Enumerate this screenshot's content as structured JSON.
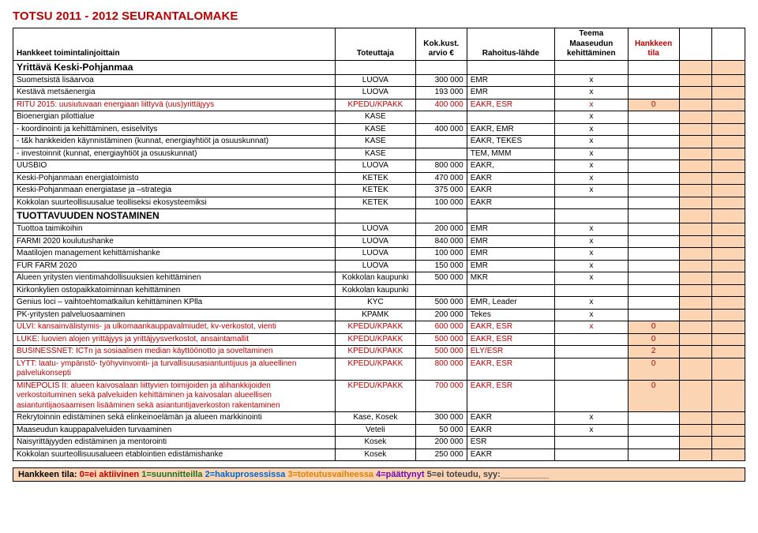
{
  "title": "TOTSU 2011 - 2012 SEURANTALOMAKE",
  "headers": {
    "name": "Hankkeet toimintalinjoittain",
    "tot": "Toteuttaja",
    "kok": "Kok.kust. arvio €",
    "rah": "Rahoitus-lähde",
    "teema": "Teema Maaseudun kehittäminen",
    "tila": "Hankkeen tila"
  },
  "section1": "Yrittävä Keski-Pohjanmaa",
  "rows1": [
    {
      "name": "Suometsistä lisäarvoa",
      "tot": "LUOVA",
      "kok": "300 000",
      "rah": "EMR",
      "teema": "x",
      "tila": "",
      "red": false,
      "salmon": false
    },
    {
      "name": "Kestävä metsäenergia",
      "tot": "LUOVA",
      "kok": "193 000",
      "rah": "EMR",
      "teema": "x",
      "tila": "",
      "red": false,
      "salmon": false
    },
    {
      "name": "RITU 2015: uusiutuvaan energiaan liittyvä (uus)yrittäjyys",
      "tot": "KPEDU/KPAKK",
      "kok": "400 000",
      "rah": "EAKR, ESR",
      "teema": "x",
      "tila": "0",
      "red": true,
      "salmon": true
    },
    {
      "name": "Bioenergian pilottialue",
      "tot": "KASE",
      "kok": "",
      "rah": "",
      "teema": "x",
      "tila": "",
      "red": false,
      "salmon": false
    },
    {
      "name": "-    koordinointi ja kehittäminen, esiselvitys",
      "tot": "KASE",
      "kok": "400 000",
      "rah": "EAKR, EMR",
      "teema": "x",
      "tila": "",
      "red": false,
      "salmon": false
    },
    {
      "name": "-    t&k hankkeiden käynnistäminen (kunnat, energiayhtiöt ja osuuskunnat)",
      "tot": "KASE",
      "kok": "",
      "rah": "EAKR, TEKES",
      "teema": "x",
      "tila": "",
      "red": false,
      "salmon": false
    },
    {
      "name": "-    investoinnit (kunnat, energiayhtiöt ja osuuskunnat)",
      "tot": "KASE",
      "kok": "",
      "rah": "TEM, MMM",
      "teema": "x",
      "tila": "",
      "red": false,
      "salmon": false
    },
    {
      "name": "UUSBIO",
      "tot": "LUOVA",
      "kok": "800 000",
      "rah": "EAKR,",
      "teema": "x",
      "tila": "",
      "red": false,
      "salmon": false
    },
    {
      "name": "Keski-Pohjanmaan energiatoimisto",
      "tot": "KETEK",
      "kok": "470 000",
      "rah": "EAKR",
      "teema": "x",
      "tila": "",
      "red": false,
      "salmon": false
    },
    {
      "name": "Keski-Pohjanmaan energiatase ja –strategia",
      "tot": "KETEK",
      "kok": "375 000",
      "rah": "EAKR",
      "teema": "x",
      "tila": "",
      "red": false,
      "salmon": false
    },
    {
      "name": "Kokkolan suurteollisuusalue teolliseksi ekosysteemiksi",
      "tot": "KETEK",
      "kok": "100 000",
      "rah": "EAKR",
      "teema": "",
      "tila": "",
      "red": false,
      "salmon": false
    }
  ],
  "section2": "TUOTTAVUUDEN NOSTAMINEN",
  "rows2": [
    {
      "name": "Tuottoa taimikoihin",
      "tot": "LUOVA",
      "kok": "200 000",
      "rah": "EMR",
      "teema": "x",
      "tila": "",
      "red": false,
      "salmon": false
    },
    {
      "name": "FARMI 2020 koulutushanke",
      "tot": "LUOVA",
      "kok": "840 000",
      "rah": "EMR",
      "teema": "x",
      "tila": "",
      "red": false,
      "salmon": false
    },
    {
      "name": "Maatilojen management kehittämishanke",
      "tot": "LUOVA",
      "kok": "100 000",
      "rah": "EMR",
      "teema": "x",
      "tila": "",
      "red": false,
      "salmon": false
    },
    {
      "name": "FUR FARM 2020",
      "tot": "LUOVA",
      "kok": "150 000",
      "rah": "EMR",
      "teema": "x",
      "tila": "",
      "red": false,
      "salmon": false
    },
    {
      "name": "Alueen yritysten vientimahdollisuuksien kehittäminen",
      "tot": "Kokkolan kaupunki",
      "kok": "500 000",
      "rah": "MKR",
      "teema": "x",
      "tila": "",
      "red": false,
      "salmon": false
    },
    {
      "name": "Kirkonkylien ostopaikkatoiminnan kehittäminen",
      "tot": "Kokkolan kaupunki",
      "kok": "",
      "rah": "",
      "teema": "",
      "tila": "",
      "red": false,
      "salmon": false
    },
    {
      "name": "Genius loci – vaihtoehtomatkailun kehittäminen KPlla",
      "tot": "KYC",
      "kok": "500 000",
      "rah": "EMR, Leader",
      "teema": "x",
      "tila": "",
      "red": false,
      "salmon": false
    },
    {
      "name": "PK-yritysten palveluosaaminen",
      "tot": "KPAMK",
      "kok": "200 000",
      "rah": "Tekes",
      "teema": "x",
      "tila": "",
      "red": false,
      "salmon": false
    },
    {
      "name": "ULVI: kansainvälistymis- ja ulkomaankauppavalmiudet, kv-verkostot, vienti",
      "tot": "KPEDU/KPAKK",
      "kok": "600 000",
      "rah": "EAKR, ESR",
      "teema": "x",
      "tila": "0",
      "red": true,
      "salmon": true
    },
    {
      "name": "LUKE: luovien alojen yrittäjyys ja yrittäjyysverkostot, ansaintamallit",
      "tot": "KPEDU/KPAKK",
      "kok": "500 000",
      "rah": "EAKR, ESR",
      "teema": "",
      "tila": "0",
      "red": true,
      "salmon": true
    },
    {
      "name": "BUSINESSNET: ICTn ja sosiaalisen median käyttöönotto ja soveltaminen",
      "tot": "KPEDU/KPAKK",
      "kok": "500 000",
      "rah": "ELY/ESR",
      "teema": "",
      "tila": "2",
      "red": true,
      "salmon": true
    },
    {
      "name": "LYTT: laatu- ympäristö- työhyvinvointi- ja turvallisuusasiantuntijuus ja alueellinen palvelukonsepti",
      "tot": "KPEDU/KPAKK",
      "kok": "800 000",
      "rah": "EAKR, ESR",
      "teema": "",
      "tila": "0",
      "red": true,
      "salmon": true
    },
    {
      "name": "MINEPOLIS II: alueen kaivosalaan liittyvien toimijoiden ja alihankkijoiden verkostoituminen sekä palveluiden kehittäminen ja kaivosalan alueellisen asiantuntijaosaamisen lisääminen sekä asiantuntijaverkoston rakentaminen",
      "tot": "KPEDU/KPAKK",
      "kok": "700 000",
      "rah": "EAKR, ESR",
      "teema": "",
      "tila": "0",
      "red": true,
      "salmon": true
    },
    {
      "name": "Rekrytoinnin edistäminen sekä elinkeinoelämän ja alueen markkinointi",
      "tot": "Kase, Kosek",
      "kok": "300 000",
      "rah": "EAKR",
      "teema": "x",
      "tila": "",
      "red": false,
      "salmon": false
    },
    {
      "name": "Maaseudun kauppapalveluiden turvaaminen",
      "tot": "Veteli",
      "kok": "50 000",
      "rah": "EAKR",
      "teema": "x",
      "tila": "",
      "red": false,
      "salmon": false
    },
    {
      "name": "Naisyrittäjyyden edistäminen ja mentorointi",
      "tot": "Kosek",
      "kok": "200 000",
      "rah": "ESR",
      "teema": "",
      "tila": "",
      "red": false,
      "salmon": false
    },
    {
      "name": "Kokkolan suurteollisuusalueen etablointien edistämishanke",
      "tot": "Kosek",
      "kok": "250 000",
      "rah": "EAKR",
      "teema": "",
      "tila": "",
      "red": false,
      "salmon": false
    }
  ],
  "legend": {
    "prefix": "Hankkeen tila: ",
    "k0": "0=ei aktiivinen",
    "k1": "1=suunnitteilla",
    "k2": "2=hakuprosessissa",
    "k3": "3=toteutusvaiheessa",
    "k4": "4=päättynyt",
    "k5": "5=ei toteudu, syy:__________"
  }
}
